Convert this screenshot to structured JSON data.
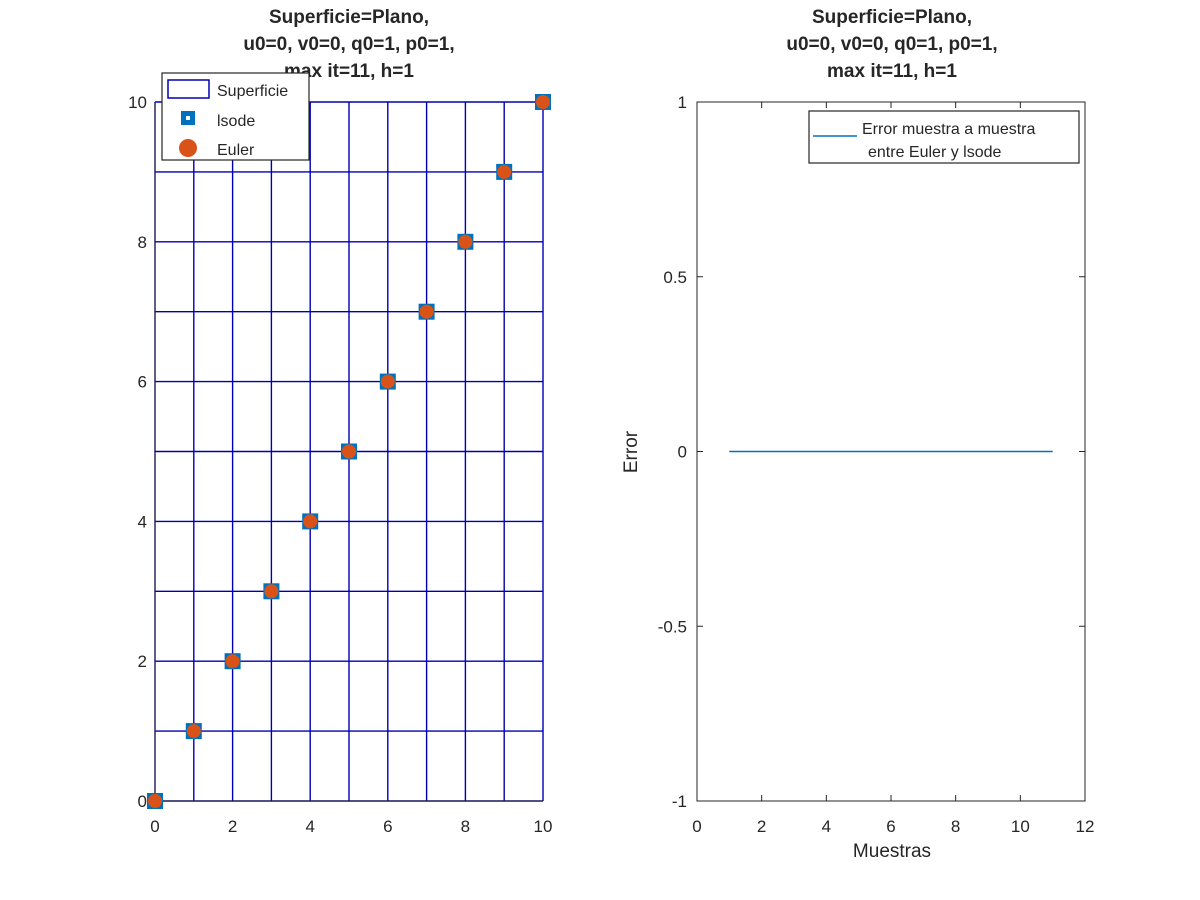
{
  "chart_data": [
    {
      "type": "scatter",
      "title": [
        "Superficie=Plano,",
        "u0=0, v0=0, q0=1, p0=1,",
        "max it=11, h=1"
      ],
      "xlabel": "",
      "ylabel": "",
      "xlim": [
        0,
        10
      ],
      "ylim": [
        0,
        10
      ],
      "xticks": [
        "0",
        "2",
        "4",
        "6",
        "8",
        "10"
      ],
      "yticks": [
        "0",
        "2",
        "4",
        "6",
        "8",
        "10"
      ],
      "surface_grid": {
        "name": "Superficie",
        "color": "#0000b3",
        "x_lines": [
          0,
          1,
          2,
          3,
          4,
          5,
          6,
          7,
          8,
          9,
          10
        ],
        "y_lines": [
          0,
          1,
          2,
          3,
          4,
          5,
          6,
          7,
          8,
          9,
          10
        ]
      },
      "series": [
        {
          "name": "lsode",
          "marker": "square",
          "color": "#0072bd",
          "x": [
            0,
            1,
            2,
            3,
            4,
            5,
            6,
            7,
            8,
            9,
            10
          ],
          "y": [
            0,
            1,
            2,
            3,
            4,
            5,
            6,
            7,
            8,
            9,
            10
          ]
        },
        {
          "name": "Euler",
          "marker": "circle",
          "color": "#d95319",
          "x": [
            0,
            1,
            2,
            3,
            4,
            5,
            6,
            7,
            8,
            9,
            10
          ],
          "y": [
            0,
            1,
            2,
            3,
            4,
            5,
            6,
            7,
            8,
            9,
            10
          ]
        }
      ],
      "legend": {
        "position": "top-left",
        "entries": [
          "Superficie",
          "lsode",
          "Euler"
        ]
      },
      "grid": false
    },
    {
      "type": "line",
      "title": [
        "Superficie=Plano,",
        "u0=0, v0=0, q0=1, p0=1,",
        "max it=11, h=1"
      ],
      "xlabel": "Muestras",
      "ylabel": "Error",
      "xlim": [
        0,
        12
      ],
      "ylim": [
        -1,
        1
      ],
      "xticks": [
        "0",
        "2",
        "4",
        "6",
        "8",
        "10",
        "12"
      ],
      "yticks": [
        "-1",
        "-0.5",
        "0",
        "0.5",
        "1"
      ],
      "series": [
        {
          "name": [
            "Error  muestra a muestra",
            "entre Euler y lsode"
          ],
          "color": "#0072bd",
          "x": [
            1,
            2,
            3,
            4,
            5,
            6,
            7,
            8,
            9,
            10,
            11
          ],
          "y": [
            0,
            0,
            0,
            0,
            0,
            0,
            0,
            0,
            0,
            0,
            0
          ]
        }
      ],
      "legend": {
        "position": "top-right"
      },
      "grid": false
    }
  ]
}
